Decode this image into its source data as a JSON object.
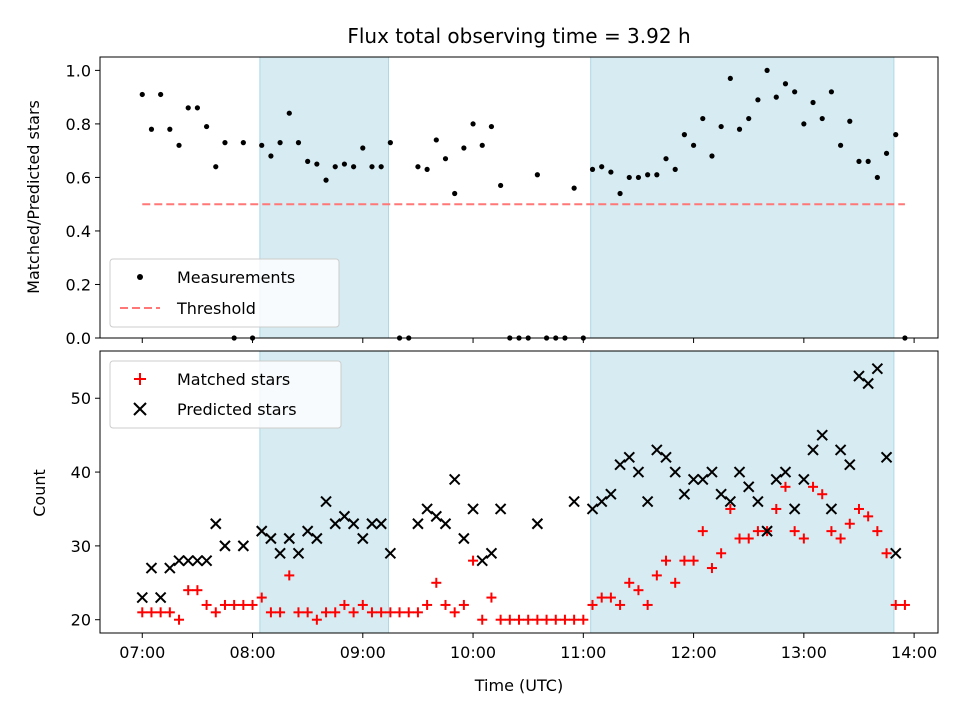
{
  "title": "Flux total observing time = 3.92 h",
  "chart_data": [
    {
      "type": "scatter",
      "ylabel": "Matched/Predicted stars",
      "ylim": [
        0,
        1.05
      ],
      "yticks": [
        0.0,
        0.2,
        0.4,
        0.6,
        0.8,
        1.0
      ],
      "ytick_labels": [
        "0.0",
        "0.2",
        "0.4",
        "0.6",
        "0.8",
        "1.0"
      ],
      "legend": {
        "placement": "lower-left",
        "entries": [
          "Measurements",
          "Threshold"
        ]
      },
      "series": [
        {
          "name": "Measurements",
          "color": "#000000",
          "marker": "dot",
          "points": [
            [
              "07:00",
              0.91
            ],
            [
              "07:05",
              0.78
            ],
            [
              "07:10",
              0.91
            ],
            [
              "07:15",
              0.78
            ],
            [
              "07:20",
              0.72
            ],
            [
              "07:25",
              0.86
            ],
            [
              "07:30",
              0.86
            ],
            [
              "07:35",
              0.79
            ],
            [
              "07:40",
              0.64
            ],
            [
              "07:45",
              0.73
            ],
            [
              "07:50",
              0.0
            ],
            [
              "07:55",
              0.73
            ],
            [
              "08:00",
              0.0
            ],
            [
              "08:05",
              0.72
            ],
            [
              "08:10",
              0.68
            ],
            [
              "08:15",
              0.73
            ],
            [
              "08:20",
              0.84
            ],
            [
              "08:25",
              0.73
            ],
            [
              "08:30",
              0.66
            ],
            [
              "08:35",
              0.65
            ],
            [
              "08:40",
              0.59
            ],
            [
              "08:45",
              0.64
            ],
            [
              "08:50",
              0.65
            ],
            [
              "08:55",
              0.64
            ],
            [
              "09:00",
              0.71
            ],
            [
              "09:05",
              0.64
            ],
            [
              "09:10",
              0.64
            ],
            [
              "09:15",
              0.73
            ],
            [
              "09:20",
              0.0
            ],
            [
              "09:25",
              0.0
            ],
            [
              "09:30",
              0.64
            ],
            [
              "09:35",
              0.63
            ],
            [
              "09:40",
              0.74
            ],
            [
              "09:45",
              0.67
            ],
            [
              "09:50",
              0.54
            ],
            [
              "09:55",
              0.71
            ],
            [
              "10:00",
              0.8
            ],
            [
              "10:05",
              0.72
            ],
            [
              "10:10",
              0.79
            ],
            [
              "10:15",
              0.57
            ],
            [
              "10:20",
              0.0
            ],
            [
              "10:25",
              0.0
            ],
            [
              "10:30",
              0.0
            ],
            [
              "10:35",
              0.61
            ],
            [
              "10:40",
              0.0
            ],
            [
              "10:45",
              0.0
            ],
            [
              "10:50",
              0.0
            ],
            [
              "10:55",
              0.56
            ],
            [
              "11:00",
              0.0
            ],
            [
              "11:05",
              0.63
            ],
            [
              "11:10",
              0.64
            ],
            [
              "11:15",
              0.62
            ],
            [
              "11:20",
              0.54
            ],
            [
              "11:25",
              0.6
            ],
            [
              "11:30",
              0.6
            ],
            [
              "11:35",
              0.61
            ],
            [
              "11:40",
              0.61
            ],
            [
              "11:45",
              0.67
            ],
            [
              "11:50",
              0.63
            ],
            [
              "11:55",
              0.76
            ],
            [
              "12:00",
              0.72
            ],
            [
              "12:05",
              0.82
            ],
            [
              "12:10",
              0.68
            ],
            [
              "12:15",
              0.79
            ],
            [
              "12:20",
              0.97
            ],
            [
              "12:25",
              0.78
            ],
            [
              "12:30",
              0.82
            ],
            [
              "12:35",
              0.89
            ],
            [
              "12:40",
              1.0
            ],
            [
              "12:45",
              0.9
            ],
            [
              "12:50",
              0.95
            ],
            [
              "12:55",
              0.92
            ],
            [
              "13:00",
              0.8
            ],
            [
              "13:05",
              0.88
            ],
            [
              "13:10",
              0.82
            ],
            [
              "13:15",
              0.92
            ],
            [
              "13:20",
              0.72
            ],
            [
              "13:25",
              0.81
            ],
            [
              "13:30",
              0.66
            ],
            [
              "13:35",
              0.66
            ],
            [
              "13:40",
              0.6
            ],
            [
              "13:45",
              0.69
            ],
            [
              "13:50",
              0.76
            ],
            [
              "13:55",
              0.0
            ]
          ]
        },
        {
          "name": "Threshold",
          "color": "#ff7777",
          "style": "dashed",
          "points": [
            [
              "07:00",
              0.5
            ],
            [
              "13:55",
              0.5
            ]
          ]
        }
      ]
    },
    {
      "type": "scatter",
      "xlabel": "Time (UTC)",
      "ylabel": "Count",
      "ylim": [
        18.2,
        56.4
      ],
      "yticks": [
        20,
        30,
        40,
        50
      ],
      "ytick_labels": [
        "20",
        "30",
        "40",
        "50"
      ],
      "legend": {
        "placement": "upper-left",
        "entries": [
          "Matched stars",
          "Predicted stars"
        ]
      },
      "series": [
        {
          "name": "Matched stars",
          "color": "#ff0000",
          "marker": "plus",
          "points": [
            [
              "07:00",
              21
            ],
            [
              "07:05",
              21
            ],
            [
              "07:10",
              21
            ],
            [
              "07:15",
              21
            ],
            [
              "07:20",
              20
            ],
            [
              "07:25",
              24
            ],
            [
              "07:30",
              24
            ],
            [
              "07:35",
              22
            ],
            [
              "07:40",
              21
            ],
            [
              "07:45",
              22
            ],
            [
              "07:50",
              22
            ],
            [
              "07:55",
              22
            ],
            [
              "08:00",
              22
            ],
            [
              "08:05",
              23
            ],
            [
              "08:10",
              21
            ],
            [
              "08:15",
              21
            ],
            [
              "08:20",
              26
            ],
            [
              "08:25",
              21
            ],
            [
              "08:30",
              21
            ],
            [
              "08:35",
              20
            ],
            [
              "08:40",
              21
            ],
            [
              "08:45",
              21
            ],
            [
              "08:50",
              22
            ],
            [
              "08:55",
              21
            ],
            [
              "09:00",
              22
            ],
            [
              "09:05",
              21
            ],
            [
              "09:10",
              21
            ],
            [
              "09:15",
              21
            ],
            [
              "09:20",
              21
            ],
            [
              "09:25",
              21
            ],
            [
              "09:30",
              21
            ],
            [
              "09:35",
              22
            ],
            [
              "09:40",
              25
            ],
            [
              "09:45",
              22
            ],
            [
              "09:50",
              21
            ],
            [
              "09:55",
              22
            ],
            [
              "10:00",
              28
            ],
            [
              "10:05",
              20
            ],
            [
              "10:10",
              23
            ],
            [
              "10:15",
              20
            ],
            [
              "10:20",
              20
            ],
            [
              "10:25",
              20
            ],
            [
              "10:30",
              20
            ],
            [
              "10:35",
              20
            ],
            [
              "10:40",
              20
            ],
            [
              "10:45",
              20
            ],
            [
              "10:50",
              20
            ],
            [
              "10:55",
              20
            ],
            [
              "11:00",
              20
            ],
            [
              "11:05",
              22
            ],
            [
              "11:10",
              23
            ],
            [
              "11:15",
              23
            ],
            [
              "11:20",
              22
            ],
            [
              "11:25",
              25
            ],
            [
              "11:30",
              24
            ],
            [
              "11:35",
              22
            ],
            [
              "11:40",
              26
            ],
            [
              "11:45",
              28
            ],
            [
              "11:50",
              25
            ],
            [
              "11:55",
              28
            ],
            [
              "12:00",
              28
            ],
            [
              "12:05",
              32
            ],
            [
              "12:10",
              27
            ],
            [
              "12:15",
              29
            ],
            [
              "12:20",
              35
            ],
            [
              "12:25",
              31
            ],
            [
              "12:30",
              31
            ],
            [
              "12:35",
              32
            ],
            [
              "12:40",
              32
            ],
            [
              "12:45",
              35
            ],
            [
              "12:50",
              38
            ],
            [
              "12:55",
              32
            ],
            [
              "13:00",
              31
            ],
            [
              "13:05",
              38
            ],
            [
              "13:10",
              37
            ],
            [
              "13:15",
              32
            ],
            [
              "13:20",
              31
            ],
            [
              "13:25",
              33
            ],
            [
              "13:30",
              35
            ],
            [
              "13:35",
              34
            ],
            [
              "13:40",
              32
            ],
            [
              "13:45",
              29
            ],
            [
              "13:50",
              22
            ],
            [
              "13:55",
              22
            ]
          ]
        },
        {
          "name": "Predicted stars",
          "color": "#000000",
          "marker": "x",
          "points": [
            [
              "07:00",
              23
            ],
            [
              "07:05",
              27
            ],
            [
              "07:10",
              23
            ],
            [
              "07:15",
              27
            ],
            [
              "07:20",
              28
            ],
            [
              "07:25",
              28
            ],
            [
              "07:30",
              28
            ],
            [
              "07:35",
              28
            ],
            [
              "07:40",
              33
            ],
            [
              "07:45",
              30
            ],
            [
              "07:55",
              30
            ],
            [
              "08:05",
              32
            ],
            [
              "08:10",
              31
            ],
            [
              "08:15",
              29
            ],
            [
              "08:20",
              31
            ],
            [
              "08:25",
              29
            ],
            [
              "08:30",
              32
            ],
            [
              "08:35",
              31
            ],
            [
              "08:40",
              36
            ],
            [
              "08:45",
              33
            ],
            [
              "08:50",
              34
            ],
            [
              "08:55",
              33
            ],
            [
              "09:00",
              31
            ],
            [
              "09:05",
              33
            ],
            [
              "09:10",
              33
            ],
            [
              "09:15",
              29
            ],
            [
              "09:30",
              33
            ],
            [
              "09:35",
              35
            ],
            [
              "09:40",
              34
            ],
            [
              "09:45",
              33
            ],
            [
              "09:50",
              39
            ],
            [
              "09:55",
              31
            ],
            [
              "10:00",
              35
            ],
            [
              "10:05",
              28
            ],
            [
              "10:10",
              29
            ],
            [
              "10:15",
              35
            ],
            [
              "10:35",
              33
            ],
            [
              "10:55",
              36
            ],
            [
              "11:05",
              35
            ],
            [
              "11:10",
              36
            ],
            [
              "11:15",
              37
            ],
            [
              "11:20",
              41
            ],
            [
              "11:25",
              42
            ],
            [
              "11:30",
              40
            ],
            [
              "11:35",
              36
            ],
            [
              "11:40",
              43
            ],
            [
              "11:45",
              42
            ],
            [
              "11:50",
              40
            ],
            [
              "11:55",
              37
            ],
            [
              "12:00",
              39
            ],
            [
              "12:05",
              39
            ],
            [
              "12:10",
              40
            ],
            [
              "12:15",
              37
            ],
            [
              "12:20",
              36
            ],
            [
              "12:25",
              40
            ],
            [
              "12:30",
              38
            ],
            [
              "12:35",
              36
            ],
            [
              "12:40",
              32
            ],
            [
              "12:45",
              39
            ],
            [
              "12:50",
              40
            ],
            [
              "12:55",
              35
            ],
            [
              "13:00",
              39
            ],
            [
              "13:05",
              43
            ],
            [
              "13:10",
              45
            ],
            [
              "13:15",
              35
            ],
            [
              "13:20",
              43
            ],
            [
              "13:25",
              41
            ],
            [
              "13:30",
              53
            ],
            [
              "13:35",
              52
            ],
            [
              "13:40",
              54
            ],
            [
              "13:45",
              42
            ],
            [
              "13:50",
              29
            ]
          ]
        }
      ]
    }
  ],
  "shaded_intervals": [
    [
      "08:04",
      "09:14"
    ],
    [
      "11:04",
      "13:49"
    ]
  ],
  "shade_color": "#add8e6",
  "x_axis": {
    "range": [
      "06:37",
      "14:13"
    ],
    "ticks": [
      "07:00",
      "08:00",
      "09:00",
      "10:00",
      "11:00",
      "12:00",
      "13:00",
      "14:00"
    ]
  }
}
